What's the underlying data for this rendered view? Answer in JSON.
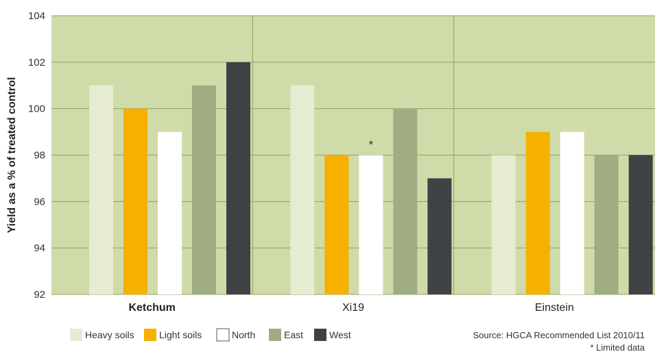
{
  "chart_data": {
    "type": "bar",
    "categories": [
      "Ketchum",
      "Xi19",
      "Einstein"
    ],
    "series": [
      {
        "name": "Heavy soils",
        "values": [
          101,
          101,
          98
        ]
      },
      {
        "name": "Light soils",
        "values": [
          100,
          98,
          99
        ]
      },
      {
        "name": "North",
        "values": [
          99,
          98,
          99
        ]
      },
      {
        "name": "East",
        "values": [
          101,
          100,
          98
        ]
      },
      {
        "name": "West",
        "values": [
          102,
          97,
          98
        ]
      }
    ],
    "ylabel": "Yield as a % of treated control",
    "ylim": [
      92,
      104
    ],
    "yticks": [
      92,
      94,
      96,
      98,
      100,
      102,
      104
    ],
    "grid": true,
    "legend_position": "bottom-left",
    "colors": {
      "plot_bg": "#cfdba9",
      "grid": "#8fa163",
      "Heavy soils": "#e6ecd2",
      "Light soils": "#f6b000",
      "North": "#ffffff",
      "East": "#a0ad82",
      "West": "#3f4245"
    },
    "annotations": [
      {
        "text": "*",
        "category": "Xi19",
        "series": "North"
      }
    ],
    "source": "Source: HGCA Recommended List 2010/11",
    "footnote": "* Limited data"
  }
}
